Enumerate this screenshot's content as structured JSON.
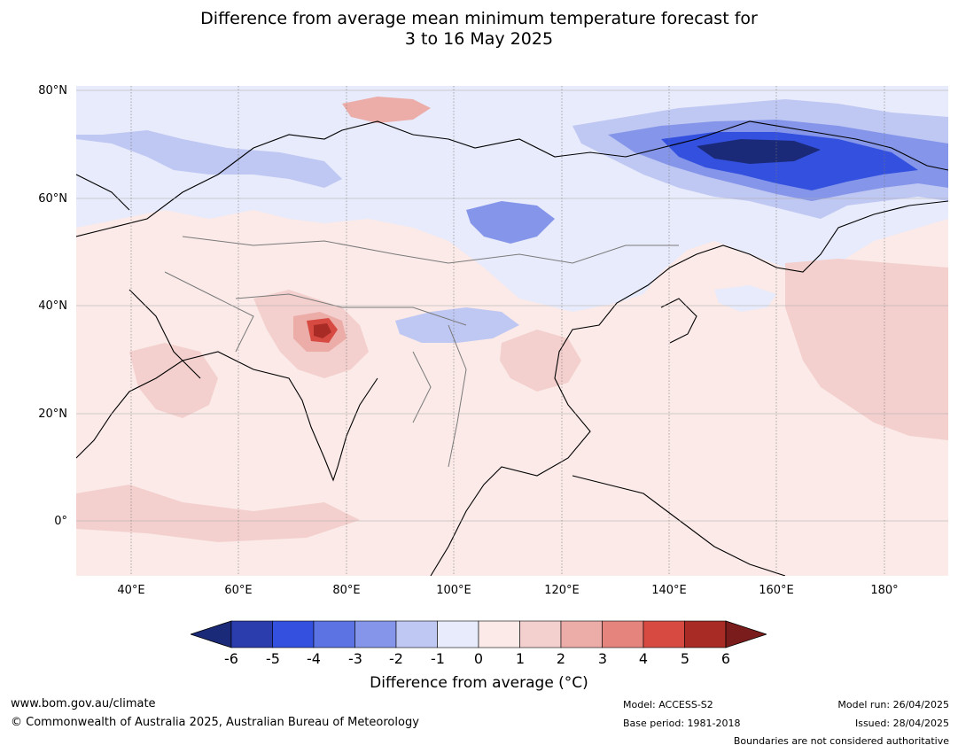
{
  "title": {
    "line1": "Difference from average mean minimum temperature forecast for",
    "line2": "3 to 16 May 2025"
  },
  "map": {
    "region": "Asia",
    "lat_labels": [
      "80°N",
      "60°N",
      "40°N",
      "20°N",
      "0°"
    ],
    "lon_labels": [
      "40°E",
      "60°E",
      "80°E",
      "100°E",
      "120°E",
      "140°E",
      "160°E",
      "180°"
    ],
    "extent": {
      "lon": [
        30,
        192
      ],
      "lat": [
        -10,
        81
      ]
    }
  },
  "colorbar": {
    "ticks": [
      "-6",
      "-5",
      "-4",
      "-3",
      "-2",
      "-1",
      "0",
      "1",
      "2",
      "3",
      "4",
      "5",
      "6"
    ],
    "colors": [
      "#1b2a78",
      "#2b3dad",
      "#3350df",
      "#5b73e3",
      "#8596ea",
      "#bfc7f3",
      "#e8ebfb",
      "#fbeae8",
      "#f3d0cd",
      "#ecaca8",
      "#e5837d",
      "#d64a42",
      "#a92b25",
      "#7a1c1b"
    ],
    "label": "Difference from average (°C)"
  },
  "footer": {
    "website": "www.bom.gov.au/climate",
    "copyright": "© Commonwealth of Australia 2025, Australian Bureau of Meteorology",
    "model": "Model: ACCESS-S2",
    "base_period": "Base period: 1981-2018",
    "model_run": "Model run: 26/04/2025",
    "issued": "Issued: 28/04/2025",
    "disclaimer": "Boundaries are not considered authoritative"
  }
}
